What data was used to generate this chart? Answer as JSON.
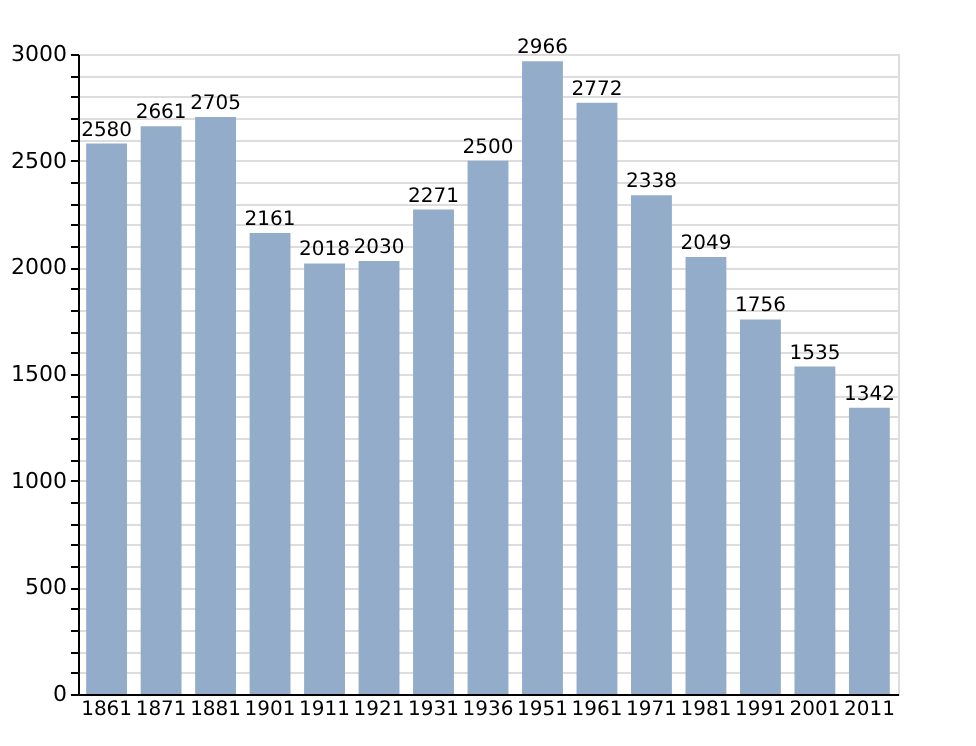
{
  "chart_data": {
    "type": "bar",
    "categories": [
      "1861",
      "1871",
      "1881",
      "1901",
      "1911",
      "1921",
      "1931",
      "1936",
      "1951",
      "1961",
      "1971",
      "1981",
      "1991",
      "2001",
      "2011"
    ],
    "values": [
      2580,
      2661,
      2705,
      2161,
      2018,
      2030,
      2271,
      2500,
      2966,
      2772,
      2338,
      2049,
      1756,
      1535,
      1342
    ],
    "color": "#93acc9",
    "data_labels": true,
    "ylim": [
      0,
      3000
    ],
    "yticks": [
      0,
      {
        "value": 100,
        "label": null
      },
      {
        "value": 200,
        "label": null
      },
      {
        "value": 300,
        "label": null
      },
      {
        "value": 400,
        "label": null
      },
      500,
      {
        "value": 600,
        "label": null
      },
      {
        "value": 700,
        "label": null
      },
      {
        "value": 800,
        "label": null
      },
      {
        "value": 900,
        "label": null
      },
      1000,
      {
        "value": 1100,
        "label": null
      },
      {
        "value": 1200,
        "label": null
      },
      {
        "value": 1300,
        "label": null
      },
      {
        "value": 1400,
        "label": null
      },
      1500,
      {
        "value": 1600,
        "label": null
      },
      {
        "value": 1700,
        "label": null
      },
      {
        "value": 1800,
        "label": null
      },
      {
        "value": 1900,
        "label": null
      },
      2000,
      {
        "value": 2100,
        "label": null
      },
      {
        "value": 2200,
        "label": null
      },
      {
        "value": 2300,
        "label": null
      },
      {
        "value": 2400,
        "label": null
      },
      2500,
      {
        "value": 2600,
        "label": null
      },
      {
        "value": 2700,
        "label": null
      },
      {
        "value": 2800,
        "label": null
      },
      {
        "value": 2900,
        "label": null
      },
      3000
    ],
    "grid": true
  }
}
